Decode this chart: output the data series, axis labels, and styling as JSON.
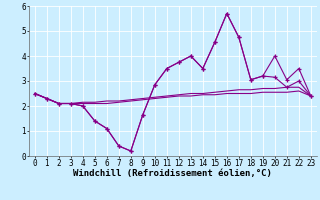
{
  "x": [
    0,
    1,
    2,
    3,
    4,
    5,
    6,
    7,
    8,
    9,
    10,
    11,
    12,
    13,
    14,
    15,
    16,
    17,
    18,
    19,
    20,
    21,
    22,
    23
  ],
  "line1": [
    2.5,
    2.3,
    2.1,
    2.1,
    2.0,
    1.4,
    1.1,
    0.4,
    0.2,
    1.65,
    2.85,
    3.5,
    3.75,
    4.0,
    3.5,
    4.55,
    5.7,
    4.75,
    3.05,
    3.2,
    3.15,
    2.75,
    3.0,
    2.4
  ],
  "line2": [
    2.5,
    2.3,
    2.1,
    2.1,
    2.0,
    1.4,
    1.1,
    0.4,
    0.2,
    1.65,
    2.85,
    3.5,
    3.75,
    4.0,
    3.5,
    4.55,
    5.7,
    4.75,
    3.05,
    3.2,
    4.0,
    3.05,
    3.5,
    2.4
  ],
  "line3": [
    2.5,
    2.3,
    2.1,
    2.1,
    2.15,
    2.15,
    2.2,
    2.2,
    2.25,
    2.3,
    2.35,
    2.4,
    2.45,
    2.5,
    2.5,
    2.55,
    2.6,
    2.65,
    2.65,
    2.7,
    2.7,
    2.75,
    2.75,
    2.4
  ],
  "line4": [
    2.5,
    2.3,
    2.1,
    2.1,
    2.1,
    2.1,
    2.1,
    2.15,
    2.2,
    2.25,
    2.3,
    2.35,
    2.4,
    2.4,
    2.45,
    2.45,
    2.5,
    2.5,
    2.5,
    2.55,
    2.55,
    2.55,
    2.6,
    2.4
  ],
  "color": "#880088",
  "bg_color": "#cceeff",
  "grid_color": "#aadddd",
  "ylim": [
    0,
    6
  ],
  "xlim": [
    -0.5,
    23.5
  ],
  "yticks": [
    0,
    1,
    2,
    3,
    4,
    5,
    6
  ],
  "xticks": [
    0,
    1,
    2,
    3,
    4,
    5,
    6,
    7,
    8,
    9,
    10,
    11,
    12,
    13,
    14,
    15,
    16,
    17,
    18,
    19,
    20,
    21,
    22,
    23
  ],
  "xlabel": "Windchill (Refroidissement éolien,°C)",
  "xlabel_fontsize": 6.5,
  "tick_fontsize": 5.5
}
